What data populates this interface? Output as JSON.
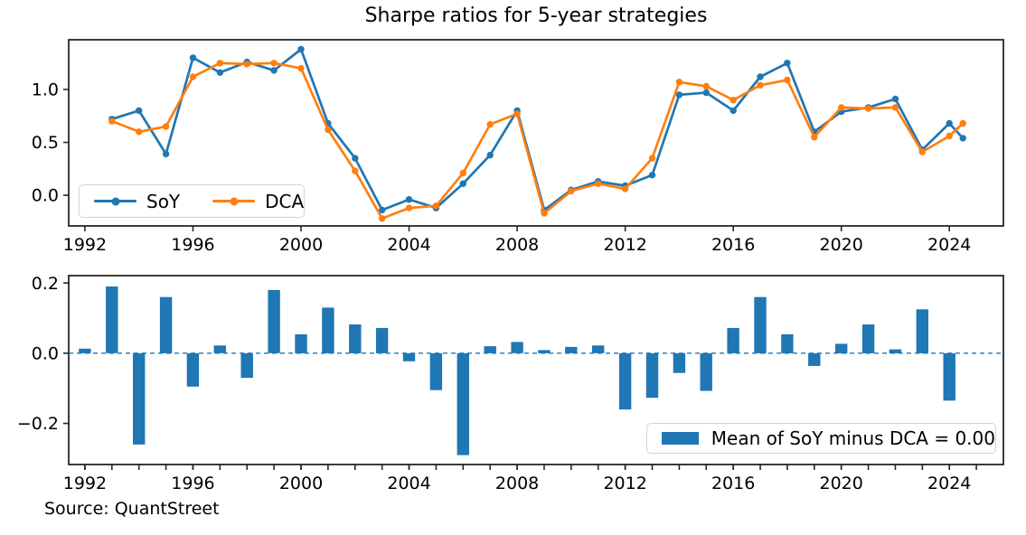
{
  "source_note": "Source: QuantStreet",
  "colors": {
    "accent_blue": "#1f77b4",
    "accent_orange": "#ff7f0e",
    "spine": "#262626",
    "zero_line": "#1f77b4",
    "legend_border": "#d5d5d5",
    "text": "#000000"
  },
  "chart_data": [
    {
      "type": "line",
      "title": "Sharpe ratios for 5-year strategies",
      "x": [
        1993,
        1994,
        1995,
        1996,
        1997,
        1998,
        1999,
        2000,
        2001,
        2002,
        2003,
        2004,
        2005,
        2006,
        2007,
        2008,
        2009,
        2010,
        2011,
        2012,
        2013,
        2014,
        2015,
        2016,
        2017,
        2018,
        2019,
        2020,
        2021,
        2022,
        2023,
        2024,
        2024.5
      ],
      "series": [
        {
          "name": "SoY",
          "color": "#1f77b4",
          "values": [
            0.72,
            0.8,
            0.39,
            1.3,
            1.16,
            1.26,
            1.18,
            1.38,
            0.68,
            0.35,
            -0.14,
            -0.04,
            -0.12,
            0.11,
            0.38,
            0.8,
            -0.14,
            0.05,
            0.13,
            0.09,
            0.19,
            0.95,
            0.97,
            0.8,
            1.12,
            1.25,
            0.6,
            0.79,
            0.83,
            0.91,
            0.43,
            0.68,
            0.54
          ]
        },
        {
          "name": "DCA",
          "color": "#ff7f0e",
          "values": [
            0.7,
            0.6,
            0.65,
            1.12,
            1.25,
            1.24,
            1.25,
            1.2,
            0.62,
            0.23,
            -0.22,
            -0.12,
            -0.1,
            0.21,
            0.67,
            0.77,
            -0.17,
            0.04,
            0.11,
            0.06,
            0.35,
            1.07,
            1.03,
            0.9,
            1.04,
            1.09,
            0.55,
            0.83,
            0.82,
            0.83,
            0.41,
            0.56,
            0.68
          ]
        }
      ],
      "xlim": [
        1991.4,
        2026.0
      ],
      "ylim": [
        -0.29,
        1.47
      ],
      "xticks": [
        1992,
        1996,
        2000,
        2004,
        2008,
        2012,
        2016,
        2020,
        2024
      ],
      "yticks": [
        0.0,
        0.5,
        1.0
      ],
      "ytick_labels": [
        "0.0",
        "0.5",
        "1.0"
      ],
      "xlabel": "",
      "ylabel": "",
      "grid": false,
      "legend_position": "lower left"
    },
    {
      "type": "bar",
      "title": "",
      "x": [
        1992,
        1993,
        1994,
        1995,
        1996,
        1997,
        1998,
        1999,
        2000,
        2001,
        2002,
        2003,
        2004,
        2005,
        2006,
        2007,
        2008,
        2009,
        2010,
        2011,
        2012,
        2013,
        2014,
        2015,
        2016,
        2017,
        2018,
        2019,
        2020,
        2021,
        2022,
        2023,
        2024
      ],
      "values": [
        0.013,
        0.19,
        -0.26,
        0.16,
        -0.095,
        0.022,
        -0.07,
        0.18,
        0.054,
        0.13,
        0.082,
        0.072,
        -0.023,
        -0.105,
        -0.29,
        0.02,
        0.032,
        0.009,
        0.018,
        0.022,
        -0.16,
        -0.127,
        -0.056,
        -0.107,
        0.072,
        0.16,
        0.054,
        -0.036,
        0.027,
        0.082,
        0.011,
        0.125,
        -0.135
      ],
      "bar_color": "#1f77b4",
      "xlim": [
        1991.4,
        2026.0
      ],
      "ylim": [
        -0.317,
        0.221
      ],
      "xticks": [
        1992,
        1996,
        2000,
        2004,
        2008,
        2012,
        2016,
        2020,
        2024
      ],
      "minor_xtick_years": [
        1992,
        2025
      ],
      "yticks": [
        -0.2,
        0.0,
        0.2
      ],
      "ytick_labels": [
        "−0.2",
        "0.0",
        "0.2"
      ],
      "zero_line_dashed": true,
      "grid": false,
      "legend": {
        "label": "Mean of SoY minus DCA = 0.00",
        "position": "lower right"
      }
    }
  ]
}
